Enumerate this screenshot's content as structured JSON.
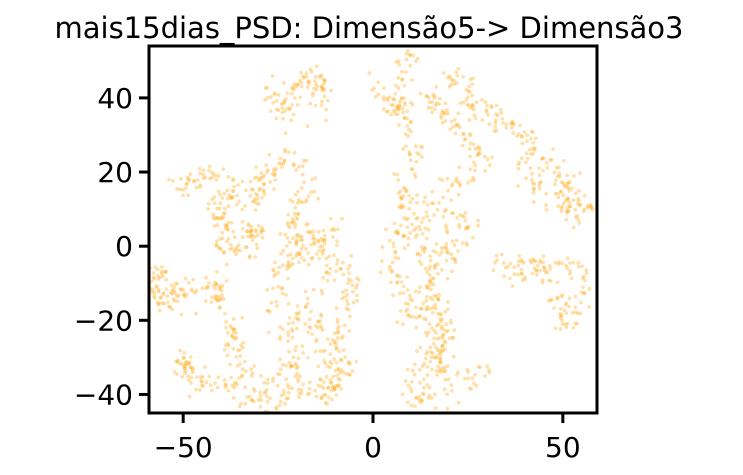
{
  "chart_data": {
    "type": "scatter",
    "title": "mais15dias_PSD: Dimensão5-> Dimensão3",
    "xlabel": "",
    "ylabel": "",
    "xlim": [
      -59,
      59
    ],
    "ylim": [
      -45,
      54
    ],
    "x_ticks": [
      {
        "value": -50,
        "label": "−50"
      },
      {
        "value": 0,
        "label": "0"
      },
      {
        "value": 50,
        "label": "50"
      }
    ],
    "y_ticks": [
      {
        "value": 40,
        "label": "40"
      },
      {
        "value": 20,
        "label": "20"
      },
      {
        "value": 0,
        "label": "0"
      },
      {
        "value": -20,
        "label": "−20"
      },
      {
        "value": -40,
        "label": "−40"
      }
    ],
    "grid": false,
    "marker_color": "#ffb028",
    "clusters": [
      {
        "path": [
          [
            -28,
            43
          ],
          [
            -26,
            39
          ],
          [
            -24,
            34
          ],
          [
            -22,
            38
          ],
          [
            -20,
            43
          ],
          [
            -17,
            45
          ],
          [
            -14,
            46
          ],
          [
            -14,
            40
          ],
          [
            -15,
            34
          ],
          [
            -16,
            32
          ]
        ],
        "spread": 1.6,
        "count": 90
      },
      {
        "path": [
          [
            1,
            44
          ],
          [
            3,
            40
          ],
          [
            5,
            36
          ],
          [
            7,
            45
          ],
          [
            8,
            50
          ],
          [
            10,
            54
          ],
          [
            11,
            48
          ]
        ],
        "spread": 1.3,
        "count": 50
      },
      {
        "path": [
          [
            5,
            40
          ],
          [
            8,
            37
          ],
          [
            9,
            30
          ],
          [
            11,
            25
          ],
          [
            12,
            20
          ]
        ],
        "spread": 1.5,
        "count": 40
      },
      {
        "path": [
          [
            13,
            38
          ],
          [
            16,
            40
          ],
          [
            18,
            36
          ],
          [
            21,
            33
          ],
          [
            23,
            30
          ],
          [
            26,
            28
          ],
          [
            28,
            24
          ],
          [
            25,
            18
          ],
          [
            20,
            16
          ]
        ],
        "spread": 1.4,
        "count": 80
      },
      {
        "path": [
          [
            20,
            44
          ],
          [
            23,
            46
          ],
          [
            25,
            40
          ],
          [
            28,
            37
          ],
          [
            33,
            35
          ],
          [
            37,
            32
          ],
          [
            40,
            30
          ],
          [
            43,
            27
          ],
          [
            45,
            23
          ],
          [
            48,
            20
          ],
          [
            51,
            18
          ],
          [
            53,
            14
          ],
          [
            56,
            11
          ],
          [
            55,
            8
          ],
          [
            52,
            10
          ],
          [
            48,
            12
          ],
          [
            44,
            14
          ],
          [
            42,
            18
          ],
          [
            40,
            20
          ],
          [
            38,
            24
          ]
        ],
        "spread": 1.8,
        "count": 200
      },
      {
        "path": [
          [
            8,
            18
          ],
          [
            10,
            15
          ],
          [
            9,
            10
          ],
          [
            12,
            5
          ],
          [
            14,
            2
          ],
          [
            14,
            -5
          ],
          [
            16,
            -10
          ],
          [
            17,
            -16
          ],
          [
            18,
            -22
          ],
          [
            16,
            -28
          ],
          [
            13,
            -33
          ],
          [
            10,
            -38
          ],
          [
            12,
            -42
          ],
          [
            16,
            -40
          ],
          [
            20,
            -38
          ],
          [
            24,
            -36
          ],
          [
            28,
            -34
          ],
          [
            31,
            -32
          ]
        ],
        "spread": 1.8,
        "count": 180
      },
      {
        "path": [
          [
            15,
            10
          ],
          [
            18,
            12
          ],
          [
            22,
            8
          ],
          [
            25,
            6
          ],
          [
            24,
            2
          ],
          [
            20,
            0
          ],
          [
            18,
            -4
          ],
          [
            16,
            -12
          ],
          [
            14,
            -18
          ],
          [
            10,
            -20
          ],
          [
            8,
            -14
          ],
          [
            6,
            -8
          ],
          [
            5,
            -2
          ],
          [
            6,
            4
          ],
          [
            8,
            8
          ]
        ],
        "spread": 1.8,
        "count": 150
      },
      {
        "path": [
          [
            16,
            -18
          ],
          [
            19,
            -22
          ],
          [
            20,
            -26
          ],
          [
            18,
            -30
          ],
          [
            16,
            -34
          ],
          [
            20,
            -32
          ]
        ],
        "spread": 1.5,
        "count": 50
      },
      {
        "path": [
          [
            32,
            -4
          ],
          [
            36,
            -6
          ],
          [
            40,
            -8
          ],
          [
            43,
            -6
          ],
          [
            46,
            -8
          ],
          [
            48,
            -12
          ],
          [
            50,
            -18
          ],
          [
            52,
            -22
          ],
          [
            54,
            -18
          ],
          [
            56,
            -14
          ],
          [
            58,
            -10
          ],
          [
            55,
            -8
          ],
          [
            52,
            -6
          ],
          [
            48,
            -6
          ],
          [
            44,
            -5
          ],
          [
            38,
            -4
          ]
        ],
        "spread": 1.5,
        "count": 120
      },
      {
        "path": [
          [
            -51,
            18
          ],
          [
            -50,
            14
          ],
          [
            -49,
            16
          ],
          [
            -45,
            19
          ],
          [
            -41,
            20
          ],
          [
            -37,
            18
          ],
          [
            -35,
            14
          ],
          [
            -39,
            12
          ],
          [
            -41,
            10
          ],
          [
            -40,
            6
          ],
          [
            -38,
            4
          ],
          [
            -40,
            2
          ],
          [
            -40,
            -1
          ],
          [
            -38,
            -3
          ],
          [
            -36,
            -1
          ]
        ],
        "spread": 1.6,
        "count": 120
      },
      {
        "path": [
          [
            -55,
            -5
          ],
          [
            -57,
            -8
          ],
          [
            -58,
            -12
          ],
          [
            -56,
            -14
          ],
          [
            -54,
            -16
          ],
          [
            -52,
            -14
          ],
          [
            -50,
            -10
          ],
          [
            -48,
            -12
          ],
          [
            -45,
            -12
          ],
          [
            -43,
            -14
          ],
          [
            -41,
            -9
          ],
          [
            -40,
            -12
          ],
          [
            -41,
            -16
          ]
        ],
        "spread": 1.5,
        "count": 110
      },
      {
        "path": [
          [
            -38,
            -20
          ],
          [
            -37,
            -25
          ],
          [
            -36,
            -30
          ],
          [
            -34,
            -33
          ],
          [
            -32,
            -35
          ],
          [
            -35,
            -37
          ],
          [
            -40,
            -38
          ],
          [
            -45,
            -38
          ],
          [
            -48,
            -34
          ],
          [
            -50,
            -30
          ],
          [
            -49,
            -36
          ]
        ],
        "spread": 1.5,
        "count": 110
      },
      {
        "path": [
          [
            -32,
            10
          ],
          [
            -30,
            12
          ],
          [
            -31,
            18
          ],
          [
            -28,
            20
          ],
          [
            -24,
            22
          ],
          [
            -22,
            24
          ],
          [
            -20,
            22
          ],
          [
            -18,
            20
          ],
          [
            -18,
            14
          ],
          [
            -20,
            8
          ],
          [
            -22,
            6
          ],
          [
            -20,
            2
          ],
          [
            -22,
            -2
          ],
          [
            -24,
            -6
          ],
          [
            -26,
            -10
          ],
          [
            -27,
            -14
          ],
          [
            -24,
            -16
          ],
          [
            -20,
            -18
          ],
          [
            -16,
            -14
          ],
          [
            -14,
            -10
          ],
          [
            -12,
            -6
          ],
          [
            -15,
            -2
          ],
          [
            -18,
            0
          ],
          [
            -16,
            4
          ],
          [
            -12,
            4
          ],
          [
            -10,
            -2
          ],
          [
            -8,
            -6
          ],
          [
            -6,
            -10
          ],
          [
            -6,
            -16
          ]
        ],
        "spread": 1.9,
        "count": 260
      },
      {
        "path": [
          [
            -30,
            2
          ],
          [
            -32,
            6
          ],
          [
            -34,
            4
          ],
          [
            -33,
            0
          ],
          [
            -30,
            -2
          ]
        ],
        "spread": 1.3,
        "count": 35
      },
      {
        "path": [
          [
            -16,
            -18
          ],
          [
            -14,
            -24
          ],
          [
            -13,
            -30
          ],
          [
            -12,
            -34
          ],
          [
            -10,
            -38
          ],
          [
            -8,
            -32
          ],
          [
            -9,
            -26
          ],
          [
            -8,
            -22
          ],
          [
            -6,
            -20
          ]
        ],
        "spread": 1.6,
        "count": 90
      },
      {
        "path": [
          [
            -24,
            -20
          ],
          [
            -22,
            -24
          ],
          [
            -20,
            -30
          ],
          [
            -24,
            -36
          ],
          [
            -28,
            -38
          ],
          [
            -31,
            -40
          ],
          [
            -33,
            -42
          ],
          [
            -30,
            -43
          ],
          [
            -26,
            -44
          ],
          [
            -23,
            -40
          ],
          [
            -20,
            -38
          ],
          [
            -16,
            -38
          ],
          [
            -12,
            -40
          ],
          [
            -9,
            -39
          ]
        ],
        "spread": 1.6,
        "count": 120
      }
    ]
  }
}
